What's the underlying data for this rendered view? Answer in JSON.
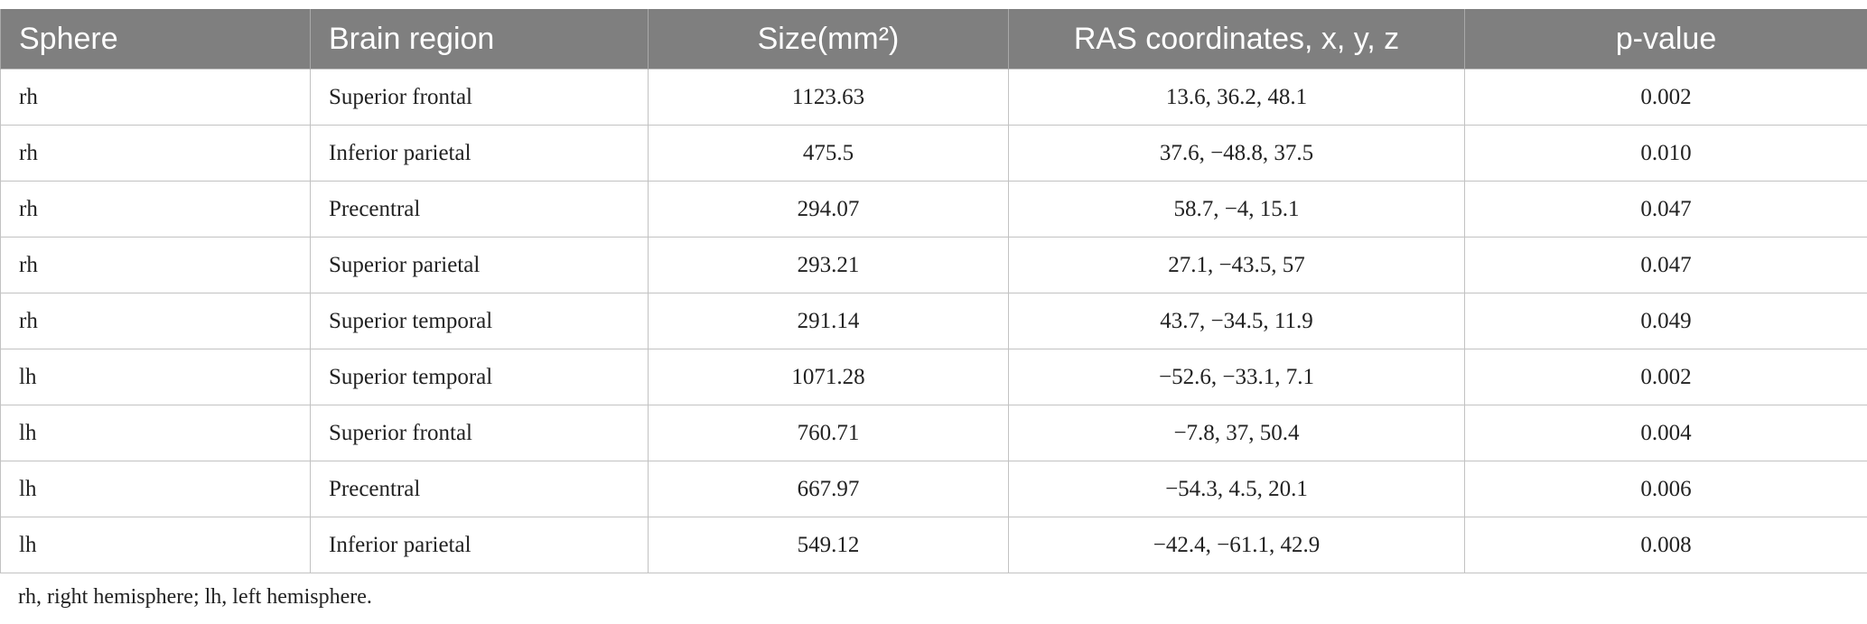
{
  "table": {
    "header": [
      "Sphere",
      "Brain region",
      "Size(mm²)",
      "RAS coordinates, x, y, z",
      "p-value"
    ],
    "rows": [
      [
        "rh",
        "Superior frontal",
        "1123.63",
        "13.6, 36.2, 48.1",
        "0.002"
      ],
      [
        "rh",
        "Inferior parietal",
        "475.5",
        "37.6, −48.8, 37.5",
        "0.010"
      ],
      [
        "rh",
        "Precentral",
        "294.07",
        "58.7, −4, 15.1",
        "0.047"
      ],
      [
        "rh",
        "Superior parietal",
        "293.21",
        "27.1, −43.5, 57",
        "0.047"
      ],
      [
        "rh",
        "Superior temporal",
        "291.14",
        "43.7, −34.5, 11.9",
        "0.049"
      ],
      [
        "lh",
        "Superior temporal",
        "1071.28",
        "−52.6, −33.1, 7.1",
        "0.002"
      ],
      [
        "lh",
        "Superior frontal",
        "760.71",
        "−7.8, 37, 50.4",
        "0.004"
      ],
      [
        "lh",
        "Precentral",
        "667.97",
        "−54.3, 4.5, 20.1",
        "0.006"
      ],
      [
        "lh",
        "Inferior parietal",
        "549.12",
        "−42.4, −61.1, 42.9",
        "0.008"
      ]
    ],
    "footnote": "rh, right hemisphere; lh, left hemisphere."
  }
}
